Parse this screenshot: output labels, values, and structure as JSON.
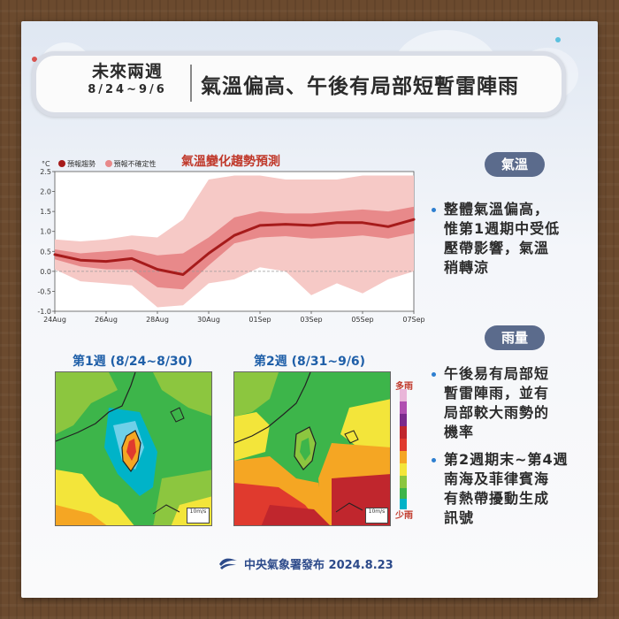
{
  "header": {
    "weeks_label": "未來兩週",
    "date_range": "8/24~9/6",
    "headline": "氣溫偏高、午後有局部短暫雷陣雨"
  },
  "chart_data": {
    "type": "line",
    "title": "氣溫變化趨勢預測",
    "ylabel": "°C",
    "ylim": [
      -1.0,
      2.5
    ],
    "y_ticks": [
      "2.5",
      "2.0",
      "1.5",
      "1.0",
      "0.5",
      "0.0",
      "-0.5",
      "-1.0"
    ],
    "x_ticks": [
      "24Aug",
      "26Aug",
      "28Aug",
      "30Aug",
      "01Sep",
      "03Sep",
      "05Sep",
      "07Sep"
    ],
    "zero_line": true,
    "legend_position": "top-left",
    "legend": [
      "預報趨勢",
      "預報不確定性"
    ],
    "series": [
      {
        "name": "預報趨勢",
        "x": [
          "2024-08-24",
          "2024-08-25",
          "2024-08-26",
          "2024-08-27",
          "2024-08-28",
          "2024-08-29",
          "2024-08-30",
          "2024-08-31",
          "2024-09-01",
          "2024-09-02",
          "2024-09-03",
          "2024-09-04",
          "2024-09-05",
          "2024-09-06",
          "2024-09-07"
        ],
        "values": [
          0.42,
          0.28,
          0.25,
          0.32,
          0.05,
          -0.08,
          0.45,
          0.9,
          1.15,
          1.18,
          1.15,
          1.22,
          1.22,
          1.12,
          1.3
        ],
        "inner_low": [
          0.3,
          0.12,
          0.05,
          0.05,
          -0.4,
          -0.45,
          0.15,
          0.7,
          0.85,
          0.88,
          0.82,
          0.85,
          0.9,
          0.82,
          0.95
        ],
        "inner_high": [
          0.55,
          0.45,
          0.5,
          0.55,
          0.4,
          0.45,
          0.85,
          1.35,
          1.5,
          1.45,
          1.45,
          1.5,
          1.55,
          1.5,
          1.62
        ],
        "outer_low": [
          0.05,
          -0.25,
          -0.3,
          -0.35,
          -0.9,
          -0.85,
          -0.3,
          -0.2,
          0.1,
          0.0,
          -0.6,
          -0.3,
          -0.55,
          -0.2,
          0.0
        ],
        "outer_high": [
          0.8,
          0.75,
          0.8,
          0.9,
          0.85,
          1.3,
          2.3,
          2.4,
          2.4,
          2.3,
          2.3,
          2.3,
          2.4,
          2.4,
          2.4
        ]
      }
    ],
    "colors": {
      "trend": "#a61b1b",
      "inner_band": "#e8898a",
      "outer_band": "#f6c9c6"
    }
  },
  "sections": {
    "temperature": {
      "label": "氣溫",
      "bullet_lines": [
        "整體氣溫偏高，",
        "惟第1週期中受低",
        "壓帶影響，氣溫",
        "稍轉涼"
      ]
    },
    "rain": {
      "label": "雨量",
      "bullet1_lines": [
        "午後易有局部短",
        "暫雷陣雨，並有",
        "局部較大雨勢的",
        "機率"
      ],
      "bullet2_lines": [
        "第2週期末~第4週",
        "南海及菲律賓海",
        "有熱帶擾動生成",
        "訊號"
      ]
    }
  },
  "maps": {
    "week1_title": "第1週 (8/24~8/30)",
    "week2_title": "第2週 (8/31~9/6)",
    "scale_label": "10m/s",
    "colorbar_top": "多雨",
    "colorbar_bottom": "少雨"
  },
  "footer": {
    "text": "中央氣象署發布 2024.8.23"
  }
}
